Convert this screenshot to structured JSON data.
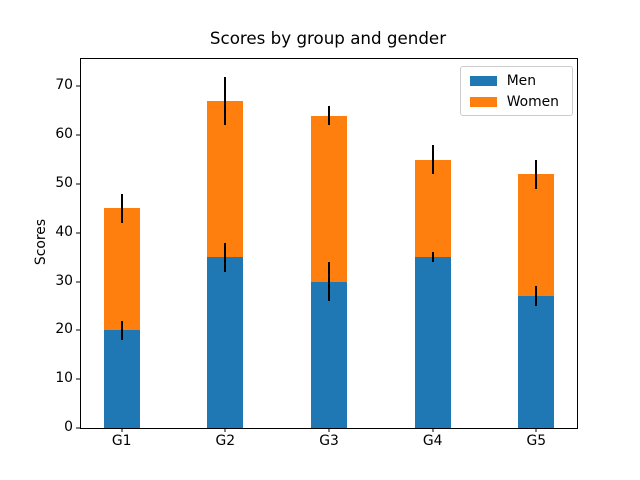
{
  "chart_data": {
    "type": "bar",
    "stacked": true,
    "title": "Scores by group and gender",
    "xlabel": "",
    "ylabel": "Scores",
    "categories": [
      "G1",
      "G2",
      "G3",
      "G4",
      "G5"
    ],
    "series": [
      {
        "name": "Men",
        "values": [
          20,
          35,
          30,
          35,
          27
        ],
        "std": [
          2,
          3,
          4,
          1,
          2
        ],
        "color": "#1f77b4"
      },
      {
        "name": "Women",
        "values": [
          25,
          32,
          34,
          20,
          25
        ],
        "std": [
          3,
          5,
          2,
          3,
          3
        ],
        "color": "#ff7f0e"
      }
    ],
    "stack_totals": [
      45,
      67,
      64,
      55,
      52
    ],
    "yticks": [
      0,
      10,
      20,
      30,
      40,
      50,
      60,
      70
    ],
    "ylim": [
      0,
      75.6
    ],
    "xlim": [
      -0.3925,
      4.3925
    ],
    "bar_width": 0.35,
    "grid": false,
    "error_bar_color": "#000000",
    "legend": {
      "position": "upper-right",
      "entries": [
        "Men",
        "Women"
      ]
    }
  }
}
